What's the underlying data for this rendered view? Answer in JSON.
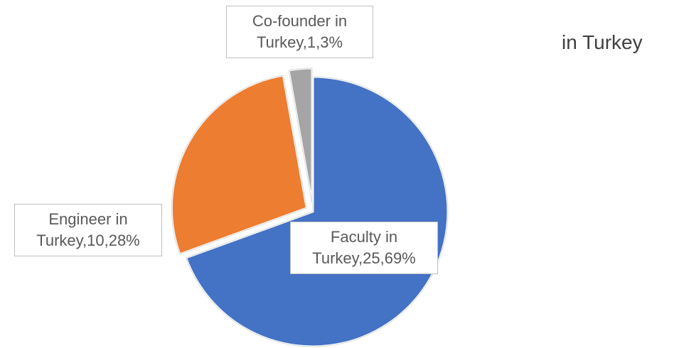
{
  "chart_data": {
    "type": "pie",
    "title": "in Turkey",
    "values": [
      25,
      10,
      1
    ],
    "value_labels": [
      "Faculty in Turkey,25,69%",
      "Engineer in Turkey,10,28%",
      "Co-founder in Turkey,1,3%"
    ],
    "colors": [
      "#4472c4",
      "#ed7d31",
      "#a5a5a5"
    ],
    "start_angle": 0,
    "direction": "clockwise",
    "exploded": [
      false,
      true,
      true
    ]
  }
}
